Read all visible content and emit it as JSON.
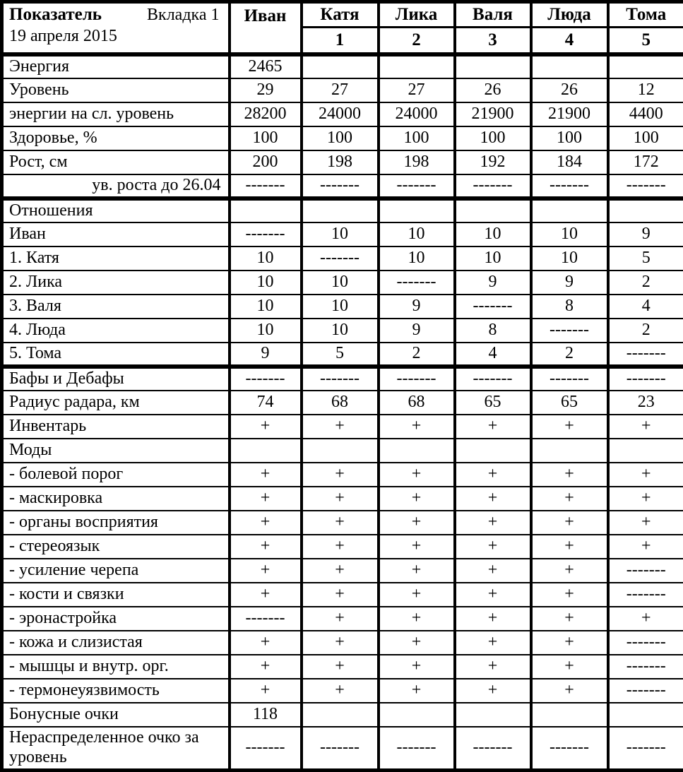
{
  "colors": {
    "border": "#000000",
    "background": "#ffffff",
    "text": "#000000"
  },
  "header": {
    "col1_title": "Показатель",
    "col1_tab": "Вкладка 1",
    "col1_date": "19 апреля 2015",
    "columns": [
      {
        "name": "Иван",
        "num": ""
      },
      {
        "name": "Катя",
        "num": "1"
      },
      {
        "name": "Лика",
        "num": "2"
      },
      {
        "name": "Валя",
        "num": "3"
      },
      {
        "name": "Люда",
        "num": "4"
      },
      {
        "name": "Тома",
        "num": "5"
      }
    ]
  },
  "rows": [
    {
      "label": "Энергия",
      "values": [
        "2465",
        "",
        "",
        "",
        "",
        ""
      ]
    },
    {
      "label": "Уровень",
      "values": [
        "29",
        "27",
        "27",
        "26",
        "26",
        "12"
      ]
    },
    {
      "label": "энергии на сл. уровень",
      "values": [
        "28200",
        "24000",
        "24000",
        "21900",
        "21900",
        "4400"
      ]
    },
    {
      "label": "Здоровье, %",
      "values": [
        "100",
        "100",
        "100",
        "100",
        "100",
        "100"
      ]
    },
    {
      "label": "Рост, см",
      "values": [
        "200",
        "198",
        "198",
        "192",
        "184",
        "172"
      ]
    },
    {
      "label": "ув. роста до 26.04",
      "align": "right",
      "thick_bottom": true,
      "values": [
        "-------",
        "-------",
        "-------",
        "-------",
        "-------",
        "-------"
      ]
    },
    {
      "label": "Отношения",
      "values": [
        "",
        "",
        "",
        "",
        "",
        ""
      ]
    },
    {
      "label": "Иван",
      "values": [
        "-------",
        "10",
        "10",
        "10",
        "10",
        "9"
      ]
    },
    {
      "label": "1. Катя",
      "values": [
        "10",
        "-------",
        "10",
        "10",
        "10",
        "5"
      ]
    },
    {
      "label": "2. Лика",
      "values": [
        "10",
        "10",
        "-------",
        "9",
        "9",
        "2"
      ]
    },
    {
      "label": "3. Валя",
      "values": [
        "10",
        "10",
        "9",
        "-------",
        "8",
        "4"
      ]
    },
    {
      "label": "4. Люда",
      "values": [
        "10",
        "10",
        "9",
        "8",
        "-------",
        "2"
      ]
    },
    {
      "label": "5. Тома",
      "thick_bottom": true,
      "values": [
        "9",
        "5",
        "2",
        "4",
        "2",
        "-------"
      ]
    },
    {
      "label": "Бафы и Дебафы",
      "values": [
        "-------",
        "-------",
        "-------",
        "-------",
        "-------",
        "-------"
      ]
    },
    {
      "label": "Радиус радара, км",
      "values": [
        "74",
        "68",
        "68",
        "65",
        "65",
        "23"
      ]
    },
    {
      "label": "Инвентарь",
      "values": [
        "+",
        "+",
        "+",
        "+",
        "+",
        "+"
      ]
    },
    {
      "label": "Моды",
      "values": [
        "",
        "",
        "",
        "",
        "",
        ""
      ]
    },
    {
      "label": "- болевой порог",
      "values": [
        "+",
        "+",
        "+",
        "+",
        "+",
        "+"
      ]
    },
    {
      "label": "- маскировка",
      "values": [
        "+",
        "+",
        "+",
        "+",
        "+",
        "+"
      ]
    },
    {
      "label": "- органы восприятия",
      "values": [
        "+",
        "+",
        "+",
        "+",
        "+",
        "+"
      ]
    },
    {
      "label": "- стереоязык",
      "values": [
        "+",
        "+",
        "+",
        "+",
        "+",
        "+"
      ]
    },
    {
      "label": "- усиление черепа",
      "values": [
        "+",
        "+",
        "+",
        "+",
        "+",
        "-------"
      ]
    },
    {
      "label": "- кости и связки",
      "values": [
        "+",
        "+",
        "+",
        "+",
        "+",
        "-------"
      ]
    },
    {
      "label": "- эронастройка",
      "values": [
        "-------",
        "+",
        "+",
        "+",
        "+",
        "+"
      ]
    },
    {
      "label": "- кожа и слизистая",
      "values": [
        "+",
        "+",
        "+",
        "+",
        "+",
        "-------"
      ]
    },
    {
      "label": "- мышцы и внутр. орг.",
      "values": [
        "+",
        "+",
        "+",
        "+",
        "+",
        "-------"
      ]
    },
    {
      "label": "- термонеуязвимость",
      "values": [
        "+",
        "+",
        "+",
        "+",
        "+",
        "-------"
      ]
    },
    {
      "label": "Бонусные очки",
      "values": [
        "118",
        "",
        "",
        "",
        "",
        ""
      ]
    },
    {
      "label": "Нераспределенное очко за уровень",
      "tall": true,
      "values": [
        "-------",
        "-------",
        "-------",
        "-------",
        "-------",
        "-------"
      ]
    }
  ]
}
